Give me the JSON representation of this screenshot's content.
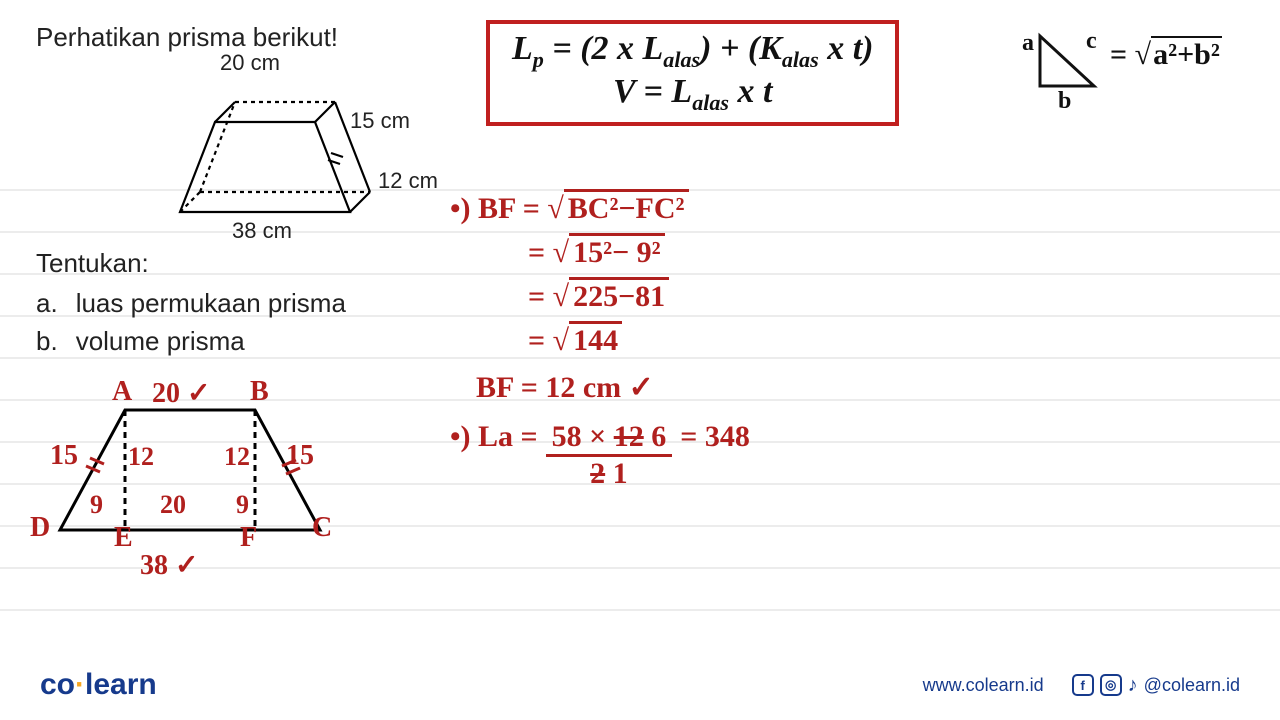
{
  "problem": {
    "intro": "Perhatikan prisma berikut!",
    "dim_top": "20 cm",
    "dim_slant": "15 cm",
    "dim_height": "12 cm",
    "dim_base": "38 cm",
    "tentukan": "Tentukan:",
    "item_a_label": "a.",
    "item_a_text": "luas permukaan prisma",
    "item_b_label": "b.",
    "item_b_text": "volume prisma"
  },
  "formula_box": {
    "line1_html": "L<span class='sub'>p</span> = (2 x L<span class='sub'>alas</span>) + (K<span class='sub'>alas</span> x t)",
    "line2_html": "V = L<span class='sub'>alas</span> x t",
    "border_color": "#c0201f"
  },
  "pythag_corner": {
    "a": "a",
    "b": "b",
    "c": "c",
    "eq": "= √(a²+b²)"
  },
  "trapezoid_hand": {
    "A": "A",
    "B": "B",
    "C": "C",
    "D": "D",
    "E": "E",
    "F": "F",
    "top": "20 ✓",
    "left_slant": "15",
    "right_slant": "15",
    "h1": "12",
    "h2": "12",
    "seg_de": "9",
    "seg_ef": "20",
    "seg_fc": "9",
    "base": "38 ✓"
  },
  "work": {
    "bullet": "•)",
    "l1": "BF = √(BC²−FC²)",
    "l2": "= √(15²− 9²)",
    "l3": "= √(225−81)",
    "l4": "= √144",
    "l5": "BF = 12 cm ✓",
    "la_label": "•) La =",
    "la_frac_top": "58 × 12̶ 6",
    "la_frac_bot": "2̶ 1",
    "la_result": "= 348"
  },
  "footer": {
    "co": "co",
    "learn": "learn",
    "url": "www.colearn.id",
    "handle": "@colearn.id"
  },
  "colors": {
    "hand_red": "#b0201e",
    "printed_black": "#111111",
    "rule": "#d9d9d9",
    "brand_blue": "#163a8c"
  }
}
